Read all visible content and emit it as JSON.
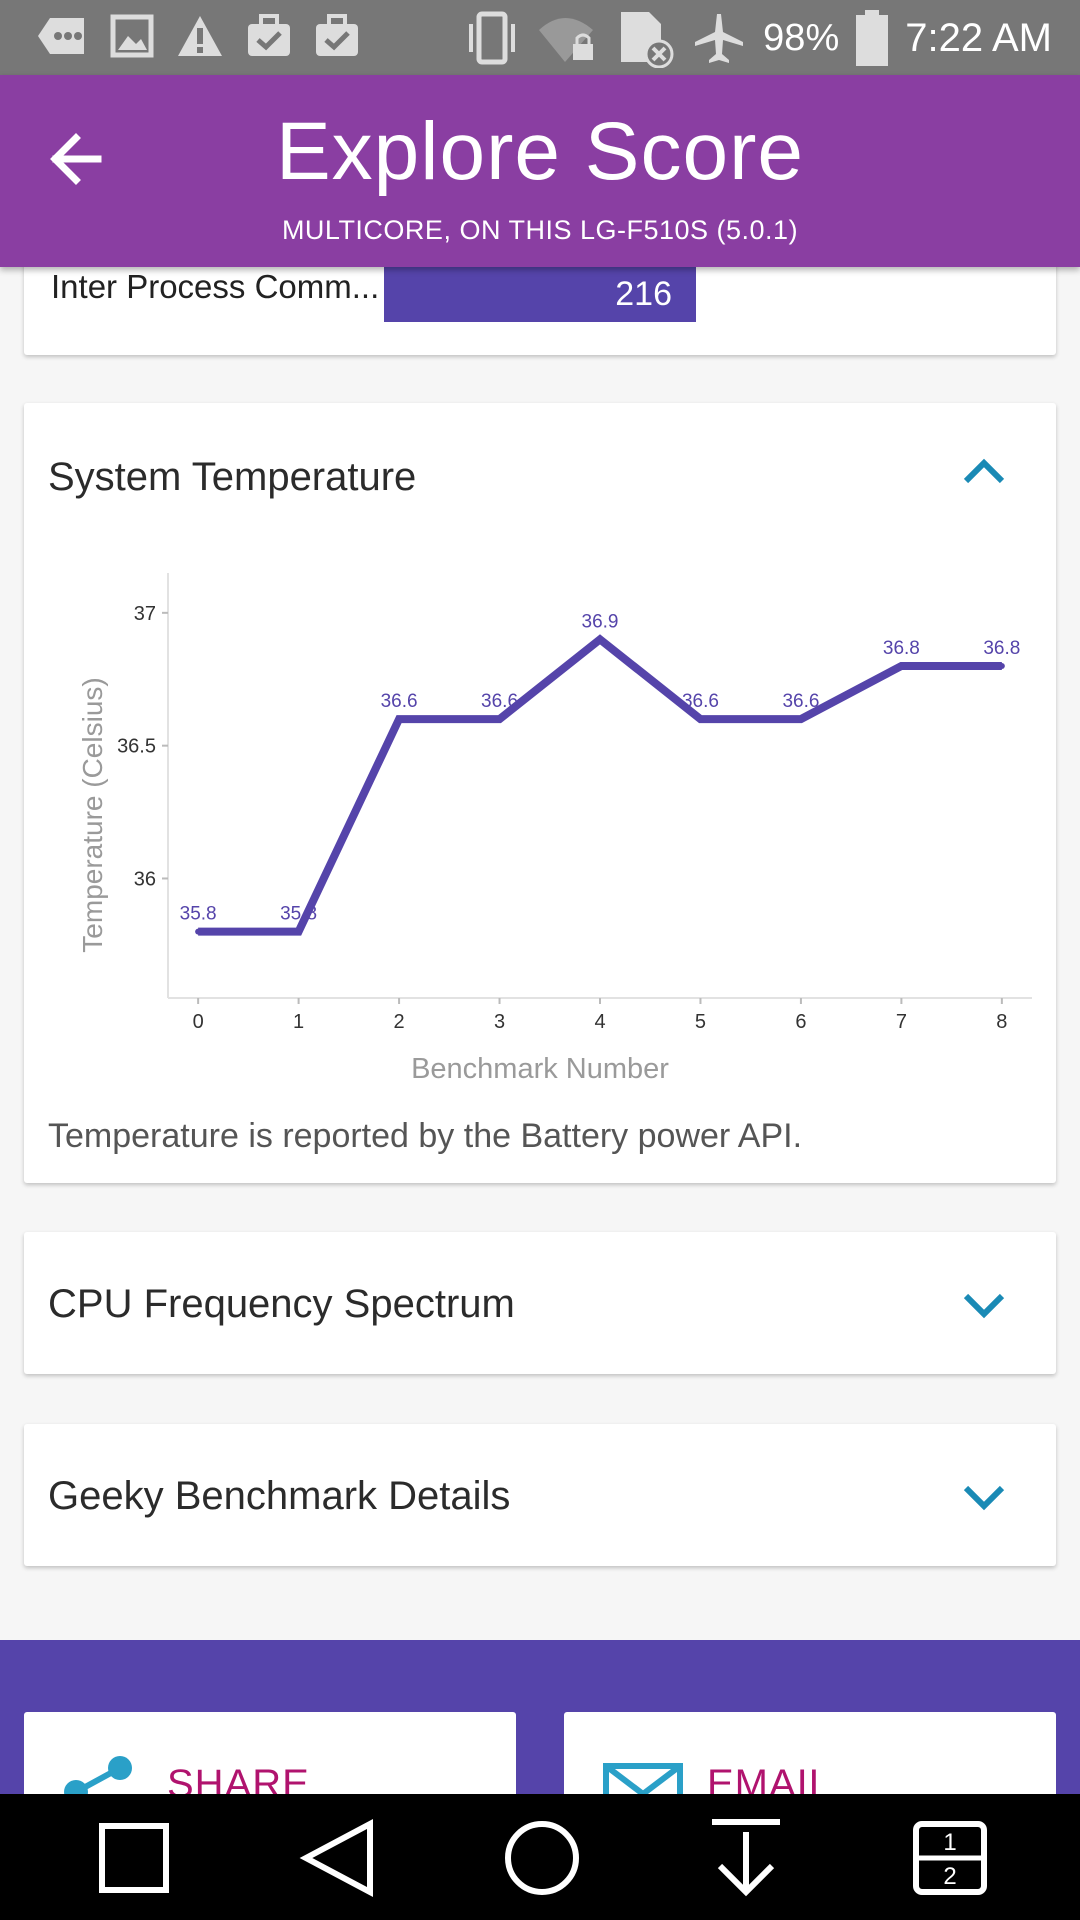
{
  "status_bar": {
    "battery": "98%",
    "time": "7:22 AM",
    "icons": [
      "message-icon",
      "image-icon",
      "warning-icon",
      "briefcase-check-icon",
      "briefcase-check-icon",
      "vibrate-icon",
      "wifi-lock-icon",
      "sim-off-icon",
      "airplane-icon",
      "battery-icon"
    ]
  },
  "app_bar": {
    "title": "Explore Score",
    "subtitle": "MULTICORE, ON THIS LG-F510S (5.0.1)",
    "back_icon": "arrow-back-icon",
    "color": "#8a3ea2"
  },
  "ipc_row": {
    "label": "Inter Process Comm...",
    "value": "216",
    "bar_color": "#5544aa"
  },
  "temperature_card": {
    "title": "System Temperature",
    "note": "Temperature is reported by the Battery power API.",
    "toggle_icon": "chevron-up-icon"
  },
  "cpu_card": {
    "title": "CPU Frequency Spectrum",
    "toggle_icon": "chevron-down-icon"
  },
  "geek_card": {
    "title": "Geeky Benchmark Details",
    "toggle_icon": "chevron-down-icon"
  },
  "actions": {
    "share_label": "SHARE",
    "email_label": "EMAIL",
    "share_icon": "share-icon",
    "email_icon": "mail-icon"
  },
  "chart_data": {
    "type": "line",
    "xlabel": "Benchmark Number",
    "ylabel": "Temperature (Celsius)",
    "x": [
      0,
      1,
      2,
      3,
      4,
      5,
      6,
      7,
      8
    ],
    "values": [
      35.8,
      35.8,
      36.6,
      36.6,
      36.9,
      36.6,
      36.6,
      36.8,
      36.8
    ],
    "data_labels": [
      "35.8",
      "35.8",
      "36.6",
      "36.6",
      "36.9",
      "36.6",
      "36.6",
      "36.8",
      "36.8"
    ],
    "y_ticks": [
      36,
      36.5,
      37
    ],
    "y_tick_labels": [
      "36",
      "36.5",
      "37"
    ],
    "x_tick_labels": [
      "0",
      "1",
      "2",
      "3",
      "4",
      "5",
      "6",
      "7",
      "8"
    ],
    "ylim": [
      35.55,
      37.15
    ],
    "xlim": [
      -0.3,
      8.3
    ],
    "line_color": "#5544aa",
    "grid": false
  },
  "nav_bar": {
    "icons": [
      "recents-square-icon",
      "back-triangle-icon",
      "home-circle-icon",
      "notification-pull-icon",
      "dual-window-icon"
    ]
  }
}
